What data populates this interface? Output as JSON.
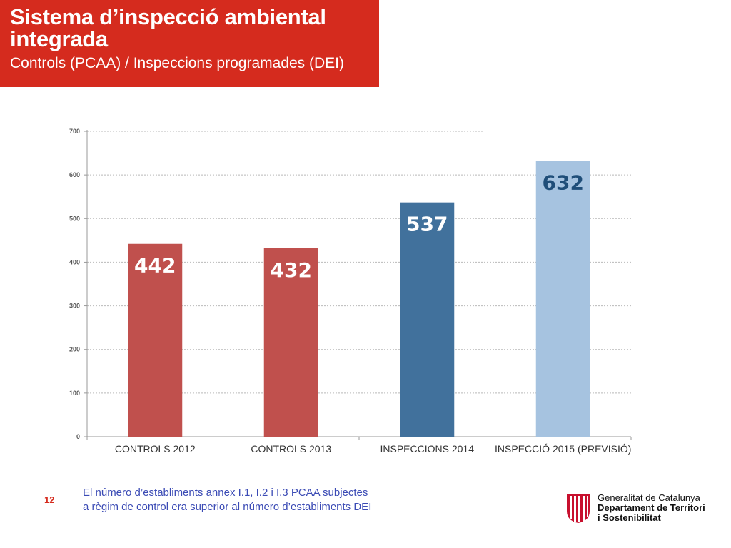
{
  "header": {
    "title": "Sistema d’inspecció ambiental integrada",
    "subtitle": "Controls (PCAA) / Inspeccions programades (DEI)"
  },
  "chart_data": {
    "type": "bar",
    "categories": [
      "CONTROLS 2012",
      "CONTROLS 2013",
      "INSPECCIONS 2014",
      "INSPECCIÓ 2015 (PREVISIÓ)"
    ],
    "values": [
      442,
      432,
      537,
      632
    ],
    "data_labels": [
      "442",
      "432",
      "537",
      "632"
    ],
    "colors": [
      "#c0504d",
      "#c0504d",
      "#41719c",
      "#a6c3e0"
    ],
    "ylim": [
      0,
      700
    ],
    "yticks": [
      0,
      100,
      200,
      300,
      400,
      500,
      600,
      700
    ],
    "grid": true,
    "legend": false
  },
  "footer": {
    "page_number": "12",
    "note_line1": "El número d’establiments annex I.1, I.2 i I.3 PCAA subjectes",
    "note_line2": "a règim de control era superior al número d’establiments DEI"
  },
  "logo": {
    "line1": "Generalitat de Catalunya",
    "line2": "Departament de Territori",
    "line3": "i Sostenibilitat"
  }
}
